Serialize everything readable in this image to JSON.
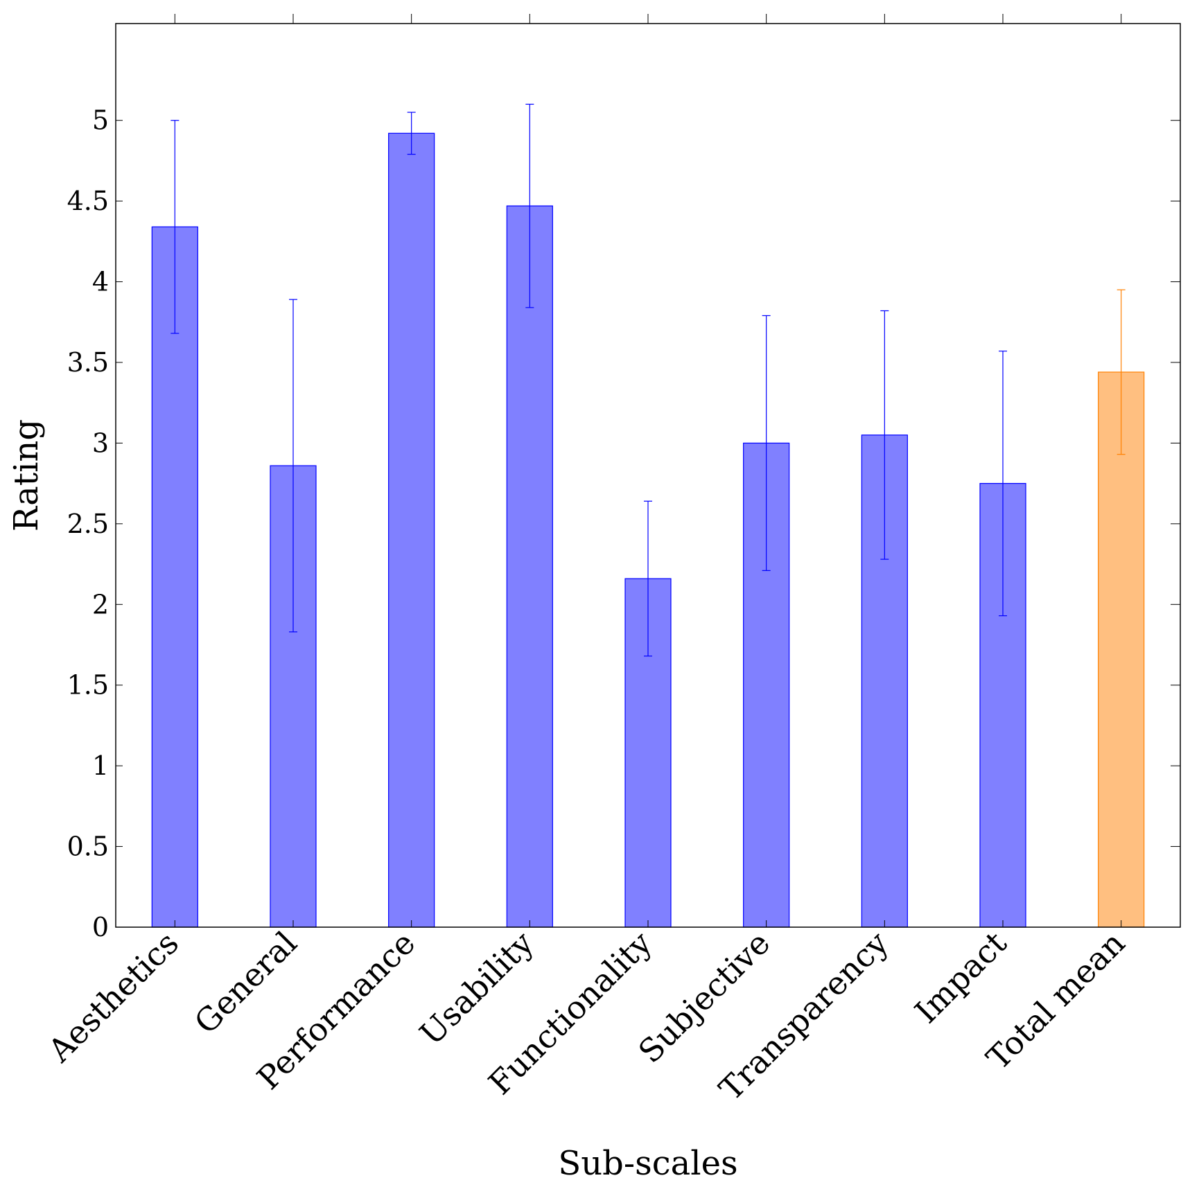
{
  "chart_data": {
    "type": "bar",
    "title": "",
    "xlabel": "Sub-scales",
    "ylabel": "Rating",
    "ylim": [
      0,
      5.6
    ],
    "yticks": [
      0,
      0.5,
      1,
      1.5,
      2,
      2.5,
      3,
      3.5,
      4,
      4.5,
      5
    ],
    "ytick_labels": [
      "0",
      "0.5",
      "1",
      "1.5",
      "2",
      "2.5",
      "3",
      "3.5",
      "4",
      "4.5",
      "5"
    ],
    "categories": [
      "Aesthetics",
      "General",
      "Performance",
      "Usability",
      "Functionality",
      "Subjective",
      "Transparency",
      "Impact",
      "Total mean"
    ],
    "values": [
      4.34,
      2.86,
      4.92,
      4.47,
      2.16,
      3.0,
      3.05,
      2.75,
      3.44
    ],
    "errors": [
      0.66,
      1.03,
      0.13,
      0.63,
      0.48,
      0.79,
      0.77,
      0.82,
      0.51
    ],
    "bar_colors": [
      "#8080ff",
      "#8080ff",
      "#8080ff",
      "#8080ff",
      "#8080ff",
      "#8080ff",
      "#8080ff",
      "#8080ff",
      "#ffbf80"
    ],
    "edge_colors": [
      "#0000ff",
      "#0000ff",
      "#0000ff",
      "#0000ff",
      "#0000ff",
      "#0000ff",
      "#0000ff",
      "#0000ff",
      "#ff8000"
    ],
    "grid": false,
    "legend": "none"
  }
}
